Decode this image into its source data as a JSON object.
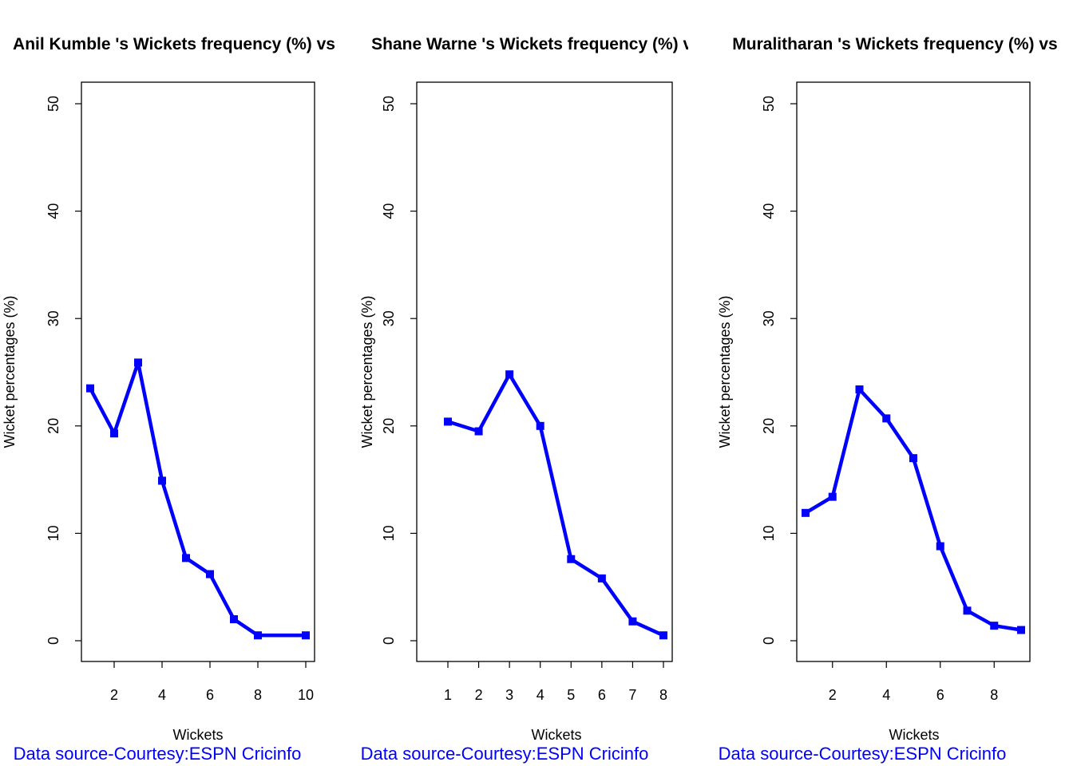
{
  "chart_data": [
    {
      "type": "line",
      "title": "Anil Kumble 's Wickets frequency (%) vs",
      "xlabel": "Wickets",
      "ylabel": "Wicket percentages (%)",
      "caption": "Data source-Courtesy:ESPN Cricinfo",
      "color": "#0000ff",
      "xlim": [
        1,
        10
      ],
      "ylim": [
        0,
        50
      ],
      "xticks": [
        2,
        4,
        6,
        8,
        10
      ],
      "yticks": [
        0,
        10,
        20,
        30,
        40,
        50
      ],
      "x": [
        1,
        2,
        3,
        4,
        5,
        6,
        7,
        8,
        10
      ],
      "y": [
        23.5,
        19.3,
        25.9,
        14.9,
        7.7,
        6.2,
        2.0,
        0.5,
        0.5
      ]
    },
    {
      "type": "line",
      "title": "Shane Warne 's Wickets frequency (%) vs",
      "xlabel": "Wickets",
      "ylabel": "Wicket percentages (%)",
      "caption": "Data source-Courtesy:ESPN Cricinfo",
      "color": "#0000ff",
      "xlim": [
        1,
        8
      ],
      "ylim": [
        0,
        50
      ],
      "xticks": [
        1,
        2,
        3,
        4,
        5,
        6,
        7,
        8
      ],
      "yticks": [
        0,
        10,
        20,
        30,
        40,
        50
      ],
      "x": [
        1,
        2,
        3,
        4,
        5,
        6,
        7,
        8
      ],
      "y": [
        20.4,
        19.5,
        24.8,
        20.0,
        7.6,
        5.8,
        1.8,
        0.5
      ]
    },
    {
      "type": "line",
      "title": "Muralitharan 's Wickets frequency (%) vs",
      "xlabel": "Wickets",
      "ylabel": "Wicket percentages (%)",
      "caption": "Data source-Courtesy:ESPN Cricinfo",
      "color": "#0000ff",
      "xlim": [
        1,
        9
      ],
      "ylim": [
        0,
        50
      ],
      "xticks": [
        2,
        4,
        6,
        8
      ],
      "yticks": [
        0,
        10,
        20,
        30,
        40,
        50
      ],
      "x": [
        1,
        2,
        3,
        4,
        5,
        6,
        7,
        8,
        9
      ],
      "y": [
        11.9,
        13.4,
        23.4,
        20.7,
        17.0,
        8.8,
        2.8,
        1.4,
        1.0
      ]
    }
  ]
}
